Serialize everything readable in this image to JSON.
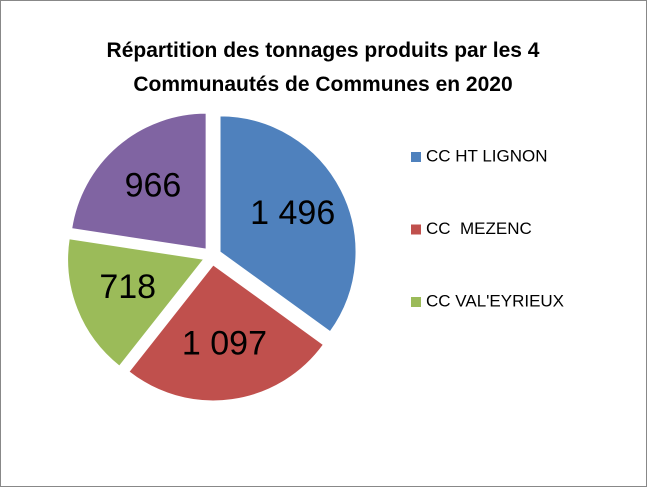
{
  "chart_data": {
    "type": "pie",
    "title": "Répartition des tonnages produits par les 4 Communautés de Communes en 2020",
    "categories": [
      "CC HT LIGNON",
      "CC  MEZENC",
      "CC VAL'EYRIEUX",
      null
    ],
    "values": [
      1496,
      1097,
      718,
      966
    ],
    "value_labels": [
      "1 496",
      "1 097",
      "718",
      "966"
    ],
    "colors": [
      "#4f81bd",
      "#c0504d",
      "#9bbb59",
      "#8064a2"
    ],
    "legend": "right"
  }
}
